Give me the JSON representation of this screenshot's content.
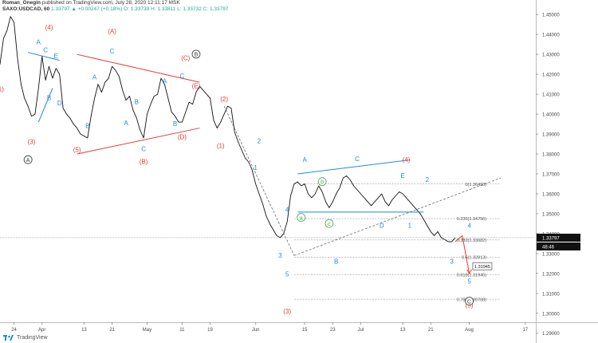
{
  "header": {
    "line1": {
      "author": "Roman_Onegin",
      "rest": "published on TradingView.com, July 28, 2020 12:11:17 MSK"
    },
    "line2": {
      "symbol": "SAXO:USDCAD, 60",
      "ohlc": "1.33797 ▲ +0.00247 (+0.18%)  O: 1.33739  H: 1.33811  L: 1.33732  C: 1.33797"
    }
  },
  "footer": {
    "brand": "TradingView",
    "logo_icon": "tradingview-logo-icon"
  },
  "chart_data": {
    "type": "line",
    "title": "",
    "xlabel": "",
    "ylabel": "",
    "ylim": [
      1.2955,
      1.4525
    ],
    "xlim": [
      "2020-03-20",
      "2020-08-20"
    ],
    "grid": false,
    "x_ticks": [
      {
        "label": "24",
        "date": "2020-03-24"
      },
      {
        "label": "Apr",
        "date": "2020-04-01"
      },
      {
        "label": "13",
        "date": "2020-04-13"
      },
      {
        "label": "21",
        "date": "2020-04-21"
      },
      {
        "label": "May",
        "date": "2020-05-01"
      },
      {
        "label": "11",
        "date": "2020-05-11"
      },
      {
        "label": "19",
        "date": "2020-05-19"
      },
      {
        "label": "Jun",
        "date": "2020-06-01"
      },
      {
        "label": "15",
        "date": "2020-06-15"
      },
      {
        "label": "23",
        "date": "2020-06-23"
      },
      {
        "label": "Jul",
        "date": "2020-07-01"
      },
      {
        "label": "13",
        "date": "2020-07-13"
      },
      {
        "label": "21",
        "date": "2020-07-21"
      },
      {
        "label": "Aug",
        "date": "2020-08-01"
      },
      {
        "label": "17",
        "date": "2020-08-17"
      }
    ],
    "y_ticks": [
      "1.45000",
      "1.44000",
      "1.43000",
      "1.42000",
      "1.41000",
      "1.40000",
      "1.39000",
      "1.38000",
      "1.37000",
      "1.36000",
      "1.35000",
      "1.34000",
      "1.33000",
      "1.32000",
      "1.31000",
      "1.30000",
      "1.29000"
    ],
    "series": [
      {
        "color": "#111111",
        "points": [
          [
            "2020-03-20",
            1.425
          ],
          [
            "2020-03-21",
            1.438
          ],
          [
            "2020-03-22",
            1.442
          ],
          [
            "2020-03-23",
            1.449
          ],
          [
            "2020-03-24",
            1.446
          ],
          [
            "2020-03-25",
            1.428
          ],
          [
            "2020-03-26",
            1.415
          ],
          [
            "2020-03-27",
            1.408
          ],
          [
            "2020-03-28",
            1.404
          ],
          [
            "2020-03-29",
            1.399
          ],
          [
            "2020-03-30",
            1.4
          ],
          [
            "2020-03-31",
            1.413
          ],
          [
            "2020-04-01",
            1.429
          ],
          [
            "2020-04-02",
            1.417
          ],
          [
            "2020-04-03",
            1.424
          ],
          [
            "2020-04-04",
            1.418
          ],
          [
            "2020-04-05",
            1.423
          ],
          [
            "2020-04-06",
            1.42
          ],
          [
            "2020-04-07",
            1.403
          ],
          [
            "2020-04-08",
            1.4
          ],
          [
            "2020-04-09",
            1.398
          ],
          [
            "2020-04-10",
            1.395
          ],
          [
            "2020-04-11",
            1.393
          ],
          [
            "2020-04-12",
            1.39
          ],
          [
            "2020-04-13",
            1.389
          ],
          [
            "2020-04-14",
            1.388
          ],
          [
            "2020-04-15",
            1.399
          ],
          [
            "2020-04-16",
            1.408
          ],
          [
            "2020-04-17",
            1.415
          ],
          [
            "2020-04-18",
            1.411
          ],
          [
            "2020-04-19",
            1.416
          ],
          [
            "2020-04-20",
            1.418
          ],
          [
            "2020-04-21",
            1.424
          ],
          [
            "2020-04-22",
            1.422
          ],
          [
            "2020-04-23",
            1.419
          ],
          [
            "2020-04-24",
            1.412
          ],
          [
            "2020-04-25",
            1.407
          ],
          [
            "2020-04-26",
            1.409
          ],
          [
            "2020-04-27",
            1.402
          ],
          [
            "2020-04-28",
            1.398
          ],
          [
            "2020-04-29",
            1.392
          ],
          [
            "2020-04-30",
            1.388
          ],
          [
            "2020-05-01",
            1.4
          ],
          [
            "2020-05-02",
            1.405
          ],
          [
            "2020-05-03",
            1.409
          ],
          [
            "2020-05-04",
            1.41
          ],
          [
            "2020-05-05",
            1.418
          ],
          [
            "2020-05-06",
            1.415
          ],
          [
            "2020-05-07",
            1.408
          ],
          [
            "2020-05-08",
            1.401
          ],
          [
            "2020-05-09",
            1.399
          ],
          [
            "2020-05-10",
            1.396
          ],
          [
            "2020-05-11",
            1.396
          ],
          [
            "2020-05-12",
            1.401
          ],
          [
            "2020-05-13",
            1.406
          ],
          [
            "2020-05-14",
            1.405
          ],
          [
            "2020-05-15",
            1.411
          ],
          [
            "2020-05-16",
            1.414
          ],
          [
            "2020-05-17",
            1.412
          ],
          [
            "2020-05-18",
            1.41
          ],
          [
            "2020-05-19",
            1.408
          ],
          [
            "2020-05-20",
            1.397
          ],
          [
            "2020-05-21",
            1.393
          ],
          [
            "2020-05-22",
            1.396
          ],
          [
            "2020-05-23",
            1.4
          ],
          [
            "2020-05-24",
            1.404
          ],
          [
            "2020-05-25",
            1.403
          ],
          [
            "2020-05-26",
            1.391
          ],
          [
            "2020-05-27",
            1.386
          ],
          [
            "2020-05-28",
            1.382
          ],
          [
            "2020-05-29",
            1.378
          ],
          [
            "2020-05-30",
            1.376
          ],
          [
            "2020-05-31",
            1.372
          ],
          [
            "2020-06-01",
            1.365
          ],
          [
            "2020-06-02",
            1.36
          ],
          [
            "2020-06-03",
            1.355
          ],
          [
            "2020-06-04",
            1.349
          ],
          [
            "2020-06-05",
            1.345
          ],
          [
            "2020-06-06",
            1.342
          ],
          [
            "2020-06-07",
            1.339
          ],
          [
            "2020-06-08",
            1.338
          ],
          [
            "2020-06-09",
            1.34
          ],
          [
            "2020-06-10",
            1.346
          ],
          [
            "2020-06-11",
            1.359
          ],
          [
            "2020-06-12",
            1.365
          ],
          [
            "2020-06-13",
            1.366
          ],
          [
            "2020-06-14",
            1.364
          ],
          [
            "2020-06-15",
            1.365
          ],
          [
            "2020-06-16",
            1.36
          ],
          [
            "2020-06-17",
            1.358
          ],
          [
            "2020-06-18",
            1.36
          ],
          [
            "2020-06-19",
            1.364
          ],
          [
            "2020-06-20",
            1.361
          ],
          [
            "2020-06-21",
            1.356
          ],
          [
            "2020-06-22",
            1.353
          ],
          [
            "2020-06-23",
            1.356
          ],
          [
            "2020-06-24",
            1.36
          ],
          [
            "2020-06-25",
            1.363
          ],
          [
            "2020-06-26",
            1.368
          ],
          [
            "2020-06-27",
            1.369
          ],
          [
            "2020-06-28",
            1.367
          ],
          [
            "2020-06-29",
            1.364
          ],
          [
            "2020-06-30",
            1.362
          ],
          [
            "2020-07-01",
            1.36
          ],
          [
            "2020-07-02",
            1.358
          ],
          [
            "2020-07-03",
            1.356
          ],
          [
            "2020-07-04",
            1.354
          ],
          [
            "2020-07-05",
            1.356
          ],
          [
            "2020-07-06",
            1.358
          ],
          [
            "2020-07-07",
            1.36
          ],
          [
            "2020-07-08",
            1.356
          ],
          [
            "2020-07-09",
            1.354
          ],
          [
            "2020-07-10",
            1.357
          ],
          [
            "2020-07-11",
            1.359
          ],
          [
            "2020-07-12",
            1.361
          ],
          [
            "2020-07-13",
            1.36
          ],
          [
            "2020-07-14",
            1.358
          ],
          [
            "2020-07-15",
            1.356
          ],
          [
            "2020-07-16",
            1.354
          ],
          [
            "2020-07-17",
            1.352
          ],
          [
            "2020-07-18",
            1.35
          ],
          [
            "2020-07-19",
            1.347
          ],
          [
            "2020-07-20",
            1.344
          ],
          [
            "2020-07-21",
            1.341
          ],
          [
            "2020-07-22",
            1.339
          ],
          [
            "2020-07-23",
            1.341
          ],
          [
            "2020-07-24",
            1.338
          ],
          [
            "2020-07-25",
            1.337
          ],
          [
            "2020-07-26",
            1.336
          ],
          [
            "2020-07-27",
            1.336
          ],
          [
            "2020-07-28",
            1.338
          ]
        ]
      }
    ],
    "trendlines": [
      {
        "color": "#1e88e5",
        "from": [
          "2020-03-28",
          1.431
        ],
        "to": [
          "2020-04-06",
          1.427
        ]
      },
      {
        "color": "#1e88e5",
        "from": [
          "2020-03-31",
          1.396
        ],
        "to": [
          "2020-04-04",
          1.413
        ]
      },
      {
        "color": "#e53935",
        "from": [
          "2020-04-11",
          1.43
        ],
        "to": [
          "2020-05-16",
          1.416
        ]
      },
      {
        "color": "#e53935",
        "from": [
          "2020-04-11",
          1.38
        ],
        "to": [
          "2020-05-16",
          1.393
        ]
      },
      {
        "color": "#1e88e5",
        "from": [
          "2020-06-13",
          1.37
        ],
        "to": [
          "2020-07-15",
          1.377
        ]
      },
      {
        "color": "#1e88e5",
        "from": [
          "2020-06-13",
          1.3508
        ],
        "to": [
          "2020-07-19",
          1.3508
        ]
      },
      {
        "color": "#555555",
        "dashed": true,
        "from": [
          "2020-05-23",
          1.404
        ],
        "to": [
          "2020-06-12",
          1.329
        ]
      },
      {
        "color": "#555555",
        "dashed": true,
        "from": [
          "2020-06-12",
          1.329
        ],
        "to": [
          "2020-08-10",
          1.368
        ]
      },
      {
        "color": "#e53935",
        "from": [
          "2020-07-28",
          1.336
        ],
        "to": [
          "2020-07-30",
          1.339
        ]
      },
      {
        "color": "#e53935",
        "from": [
          "2020-07-30",
          1.339
        ],
        "to": [
          "2020-08-01",
          1.32
        ]
      }
    ],
    "fibonacci": [
      {
        "level": "0(1.36493)",
        "price": 1.36493
      },
      {
        "level": "0.236(1.34756)",
        "price": 1.34756
      },
      {
        "level": "0.382(1.33682)",
        "price": 1.33682
      },
      {
        "level": "0.5(1.32813)",
        "price": 1.32813
      },
      {
        "level": "0.618(1.31945)",
        "price": 1.31945
      },
      {
        "level": "0.786(1.30708)",
        "price": 1.30708
      }
    ],
    "current_price": {
      "label": "1.33797",
      "price": 1.33797,
      "countdown": "48:46"
    },
    "target_label": {
      "label": "1.31945",
      "price": 1.31945
    },
    "annotations": [
      {
        "text": "(1)",
        "date": "2020-03-20",
        "price": 1.4115,
        "color": "#e53935"
      },
      {
        "text": "(3)",
        "date": "2020-03-29",
        "price": 1.385,
        "color": "#e53935"
      },
      {
        "text": "(4)",
        "date": "2020-04-03",
        "price": 1.4425,
        "color": "#e53935"
      },
      {
        "text": "A",
        "date": "2020-03-31",
        "price": 1.435,
        "color": "#1e88e5"
      },
      {
        "text": "C",
        "date": "2020-04-02",
        "price": 1.431,
        "color": "#1e88e5"
      },
      {
        "text": "E",
        "date": "2020-04-05",
        "price": 1.428,
        "color": "#1e88e5"
      },
      {
        "text": "B",
        "date": "2020-04-03",
        "price": 1.407,
        "color": "#1e88e5"
      },
      {
        "text": "D",
        "date": "2020-04-06",
        "price": 1.4045,
        "color": "#1e88e5"
      },
      {
        "text": "(5)",
        "date": "2020-04-11",
        "price": 1.381,
        "color": "#e53935"
      },
      {
        "text": "A",
        "date": "2020-04-16",
        "price": 1.4175,
        "color": "#1e88e5"
      },
      {
        "text": "B",
        "date": "2020-04-14",
        "price": 1.393,
        "color": "#1e88e5"
      },
      {
        "text": "(A)",
        "date": "2020-04-21",
        "price": 1.4405,
        "color": "#e53935"
      },
      {
        "text": "C",
        "date": "2020-04-21",
        "price": 1.4305,
        "color": "#1e88e5"
      },
      {
        "text": "A",
        "date": "2020-04-25",
        "price": 1.3945,
        "color": "#1e88e5"
      },
      {
        "text": "B",
        "date": "2020-04-28",
        "price": 1.405,
        "color": "#1e88e5"
      },
      {
        "text": "C",
        "date": "2020-04-30",
        "price": 1.3815,
        "color": "#1e88e5"
      },
      {
        "text": "(B)",
        "date": "2020-04-30",
        "price": 1.375,
        "color": "#e53935"
      },
      {
        "text": "A",
        "date": "2020-05-06",
        "price": 1.4155,
        "color": "#1e88e5"
      },
      {
        "text": "B",
        "date": "2020-05-09",
        "price": 1.394,
        "color": "#1e88e5"
      },
      {
        "text": "C",
        "date": "2020-05-11",
        "price": 1.418,
        "color": "#1e88e5"
      },
      {
        "text": "(D)",
        "date": "2020-05-11",
        "price": 1.3875,
        "color": "#e53935"
      },
      {
        "text": "(C)",
        "date": "2020-05-12",
        "price": 1.427,
        "color": "#e53935"
      },
      {
        "text": "(E)",
        "date": "2020-05-15",
        "price": 1.413,
        "color": "#e53935"
      },
      {
        "text": "(2)",
        "date": "2020-05-23",
        "price": 1.4065,
        "color": "#e53935"
      },
      {
        "text": "(1)",
        "date": "2020-05-22",
        "price": 1.383,
        "color": "#e53935"
      },
      {
        "text": "2",
        "date": "2020-06-02",
        "price": 1.3855,
        "color": "#1e88e5"
      },
      {
        "text": "1",
        "date": "2020-06-01",
        "price": 1.372,
        "color": "#1e88e5"
      },
      {
        "text": "4",
        "date": "2020-06-10",
        "price": 1.351,
        "color": "#1e88e5"
      },
      {
        "text": "3",
        "date": "2020-06-08",
        "price": 1.328,
        "color": "#1e88e5"
      },
      {
        "text": "5",
        "date": "2020-06-10",
        "price": 1.3185,
        "color": "#1e88e5"
      },
      {
        "text": "(3)",
        "date": "2020-06-10",
        "price": 1.3,
        "color": "#e53935"
      },
      {
        "text": "A",
        "date": "2020-06-15",
        "price": 1.376,
        "color": "#1e88e5"
      },
      {
        "text": "C",
        "date": "2020-06-30",
        "price": 1.3765,
        "color": "#1e88e5"
      },
      {
        "text": "D",
        "date": "2020-07-07",
        "price": 1.343,
        "color": "#1e88e5"
      },
      {
        "text": "E",
        "date": "2020-07-13",
        "price": 1.368,
        "color": "#1e88e5"
      },
      {
        "text": "B",
        "date": "2020-06-24",
        "price": 1.325,
        "color": "#1e88e5"
      },
      {
        "text": "1",
        "date": "2020-07-15",
        "price": 1.343,
        "color": "#1e88e5"
      },
      {
        "text": "2",
        "date": "2020-07-20",
        "price": 1.366,
        "color": "#1e88e5"
      },
      {
        "text": "3",
        "date": "2020-07-27",
        "price": 1.325,
        "color": "#1e88e5"
      },
      {
        "text": "4",
        "date": "2020-08-01",
        "price": 1.343,
        "color": "#1e88e5"
      },
      {
        "text": "5",
        "date": "2020-08-01",
        "price": 1.315,
        "color": "#1e88e5"
      },
      {
        "text": "(4)",
        "date": "2020-07-14",
        "price": 1.376,
        "color": "#e53935"
      },
      {
        "text": "(5)",
        "date": "2020-08-01",
        "price": 1.303,
        "color": "#e53935"
      }
    ],
    "circled_labels": [
      {
        "text": "A",
        "date": "2020-03-28",
        "price": 1.376,
        "color": "#333333"
      },
      {
        "text": "B",
        "date": "2020-05-15",
        "price": 1.429,
        "color": "#333333"
      },
      {
        "text": "C",
        "date": "2020-08-01",
        "price": 1.305,
        "color": "#333333"
      },
      {
        "text": "a",
        "date": "2020-06-14",
        "price": 1.347,
        "color": "#43a047"
      },
      {
        "text": "b",
        "date": "2020-06-20",
        "price": 1.365,
        "color": "#43a047"
      },
      {
        "text": "c",
        "date": "2020-06-22",
        "price": 1.344,
        "color": "#43a047"
      }
    ]
  }
}
